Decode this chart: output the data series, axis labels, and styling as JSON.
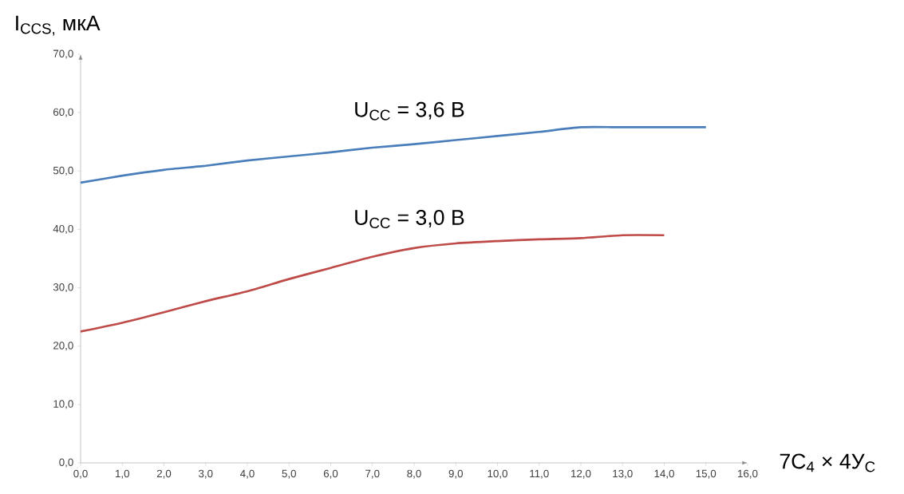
{
  "chart_data": {
    "type": "line",
    "xlabel": "7C$_{4}$ × 4У$_{C}$",
    "ylabel": "I$_{CCS,}$ мкА",
    "x": [
      0,
      1,
      2,
      3,
      4,
      5,
      6,
      7,
      8,
      9,
      10,
      11,
      12,
      13,
      14,
      15
    ],
    "series": [
      {
        "name": "U$_{CC}$ = 3,6 В",
        "color": "#4a7ebb",
        "values": [
          48,
          49.2,
          50.2,
          50.9,
          51.8,
          52.5,
          53.2,
          54,
          54.6,
          55.3,
          56,
          56.7,
          57.5,
          57.5,
          57.5,
          57.5
        ]
      },
      {
        "name": "U$_{CC}$ = 3,0 В",
        "color": "#be4b48",
        "values": [
          22.5,
          24,
          25.8,
          27.7,
          29.4,
          31.5,
          33.4,
          35.3,
          36.8,
          37.6,
          38,
          38.3,
          38.5,
          39,
          39,
          null
        ]
      }
    ],
    "xlim": [
      0,
      16
    ],
    "ylim": [
      0,
      70
    ],
    "xticks": [
      {
        "value": 0,
        "label": "0,0"
      },
      {
        "value": 1,
        "label": "1,0"
      },
      {
        "value": 2,
        "label": "2,0"
      },
      {
        "value": 3,
        "label": "3,0"
      },
      {
        "value": 4,
        "label": "4,0"
      },
      {
        "value": 5,
        "label": "5,0"
      },
      {
        "value": 6,
        "label": "6,0"
      },
      {
        "value": 7,
        "label": "7,0"
      },
      {
        "value": 8,
        "label": "8,0"
      },
      {
        "value": 9,
        "label": "9,0"
      },
      {
        "value": 10,
        "label": "10,0"
      },
      {
        "value": 11,
        "label": "11,0"
      },
      {
        "value": 12,
        "label": "12,0"
      },
      {
        "value": 13,
        "label": "13,0"
      },
      {
        "value": 14,
        "label": "14,0"
      },
      {
        "value": 15,
        "label": "15,0"
      },
      {
        "value": 16,
        "label": "16,0"
      }
    ],
    "yticks": [
      {
        "value": 0,
        "label": "0,0"
      },
      {
        "value": 10,
        "label": "10,0"
      },
      {
        "value": 20,
        "label": "20,0"
      },
      {
        "value": 30,
        "label": "30,0"
      },
      {
        "value": 40,
        "label": "40,0"
      },
      {
        "value": 50,
        "label": "50,0"
      },
      {
        "value": 60,
        "label": "60,0"
      },
      {
        "value": 70,
        "label": "70,0"
      }
    ],
    "grid": false,
    "legend": false,
    "marker": "none",
    "line_style": "solid"
  }
}
